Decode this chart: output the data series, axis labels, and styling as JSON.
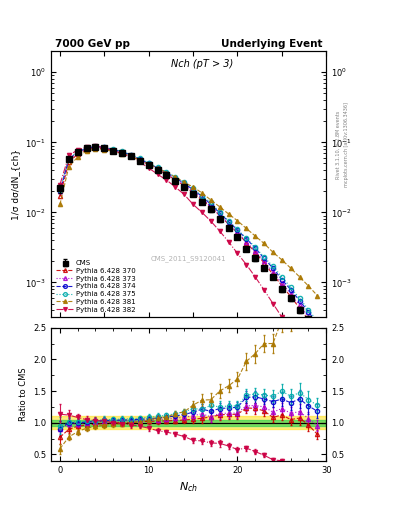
{
  "title_left": "7000 GeV pp",
  "title_right": "Underlying Event",
  "plot_label": "Nch (pT > 3)",
  "watermark": "CMS_2011_S9120041",
  "right_label": "Rivet 3.1.10, ≥ 2.8M events",
  "right_label2": "mcplots.cern.ch [arXiv:1306.3436]",
  "ylabel_main": "1/σ dσ/dN_{ch}",
  "ylabel_ratio": "Ratio to CMS",
  "xlim": [
    -1,
    30
  ],
  "ylim_ratio": [
    0.4,
    2.5
  ],
  "xdata": [
    0,
    1,
    2,
    3,
    4,
    5,
    6,
    7,
    8,
    9,
    10,
    11,
    12,
    13,
    14,
    15,
    16,
    17,
    18,
    19,
    20,
    21,
    22,
    23,
    24,
    25,
    26,
    27,
    28,
    29
  ],
  "cms_y": [
    0.022,
    0.058,
    0.072,
    0.082,
    0.085,
    0.082,
    0.076,
    0.07,
    0.063,
    0.055,
    0.047,
    0.04,
    0.034,
    0.028,
    0.023,
    0.018,
    0.014,
    0.011,
    0.008,
    0.006,
    0.0045,
    0.003,
    0.0022,
    0.0016,
    0.0012,
    0.0008,
    0.0006,
    0.0004,
    0.0003,
    0.00022
  ],
  "cms_yerr": [
    0.003,
    0.004,
    0.004,
    0.004,
    0.004,
    0.004,
    0.003,
    0.003,
    0.003,
    0.002,
    0.002,
    0.002,
    0.001,
    0.001,
    0.001,
    0.001,
    0.001,
    0.0008,
    0.0006,
    0.0004,
    0.0003,
    0.0002,
    0.00015,
    0.0001,
    8e-05,
    6e-05,
    5e-05,
    4e-05,
    3e-05,
    2e-05
  ],
  "series": [
    {
      "label": "Pythia 6.428 370",
      "color": "#cc0000",
      "linestyle": "--",
      "marker": "^",
      "fillstyle": "none",
      "y": [
        0.017,
        0.052,
        0.068,
        0.079,
        0.083,
        0.081,
        0.076,
        0.07,
        0.063,
        0.056,
        0.048,
        0.041,
        0.035,
        0.029,
        0.024,
        0.019,
        0.015,
        0.012,
        0.009,
        0.0068,
        0.0051,
        0.0037,
        0.0027,
        0.0019,
        0.0013,
        0.0009,
        0.00063,
        0.00043,
        0.00029,
        0.00018
      ]
    },
    {
      "label": "Pythia 6.428 373",
      "color": "#aa00cc",
      "linestyle": ":",
      "marker": "^",
      "fillstyle": "none",
      "y": [
        0.02,
        0.057,
        0.071,
        0.082,
        0.086,
        0.084,
        0.078,
        0.072,
        0.065,
        0.057,
        0.049,
        0.042,
        0.036,
        0.03,
        0.025,
        0.02,
        0.016,
        0.012,
        0.0092,
        0.0069,
        0.0052,
        0.0038,
        0.0028,
        0.002,
        0.0014,
        0.00098,
        0.00069,
        0.00047,
        0.00032,
        0.00021
      ]
    },
    {
      "label": "Pythia 6.428 374",
      "color": "#0000cc",
      "linestyle": "--",
      "marker": "o",
      "fillstyle": "none",
      "y": [
        0.02,
        0.058,
        0.072,
        0.083,
        0.087,
        0.085,
        0.079,
        0.073,
        0.066,
        0.058,
        0.05,
        0.043,
        0.037,
        0.031,
        0.026,
        0.021,
        0.017,
        0.013,
        0.0098,
        0.0074,
        0.0056,
        0.0042,
        0.0031,
        0.0022,
        0.0016,
        0.0011,
        0.00079,
        0.00055,
        0.00038,
        0.00026
      ]
    },
    {
      "label": "Pythia 6.428 375",
      "color": "#00aaaa",
      "linestyle": ":",
      "marker": "o",
      "fillstyle": "none",
      "y": [
        0.021,
        0.059,
        0.073,
        0.084,
        0.088,
        0.086,
        0.08,
        0.074,
        0.067,
        0.059,
        0.051,
        0.044,
        0.038,
        0.032,
        0.027,
        0.022,
        0.017,
        0.014,
        0.01,
        0.0076,
        0.0057,
        0.0043,
        0.0032,
        0.0023,
        0.0017,
        0.0012,
        0.00085,
        0.00059,
        0.00041,
        0.00028
      ]
    },
    {
      "label": "Pythia 6.428 381",
      "color": "#aa7700",
      "linestyle": "--",
      "marker": "^",
      "fillstyle": "full",
      "y": [
        0.013,
        0.045,
        0.062,
        0.075,
        0.08,
        0.079,
        0.074,
        0.069,
        0.063,
        0.056,
        0.049,
        0.043,
        0.037,
        0.032,
        0.027,
        0.023,
        0.019,
        0.015,
        0.012,
        0.0095,
        0.0076,
        0.0059,
        0.0046,
        0.0036,
        0.0027,
        0.0021,
        0.0016,
        0.0012,
        0.00089,
        0.00065
      ]
    },
    {
      "label": "Pythia 6.428 382",
      "color": "#cc0044",
      "linestyle": "-.",
      "marker": "v",
      "fillstyle": "full",
      "y": [
        0.025,
        0.065,
        0.078,
        0.086,
        0.088,
        0.084,
        0.076,
        0.069,
        0.061,
        0.052,
        0.043,
        0.035,
        0.029,
        0.023,
        0.018,
        0.013,
        0.01,
        0.0075,
        0.0054,
        0.0038,
        0.0026,
        0.0018,
        0.0012,
        0.00078,
        0.0005,
        0.00032,
        0.0002,
        0.00013,
        8.2e-05,
        5.1e-05
      ]
    }
  ],
  "green_band_half": 0.05,
  "yellow_band_half": 0.1
}
